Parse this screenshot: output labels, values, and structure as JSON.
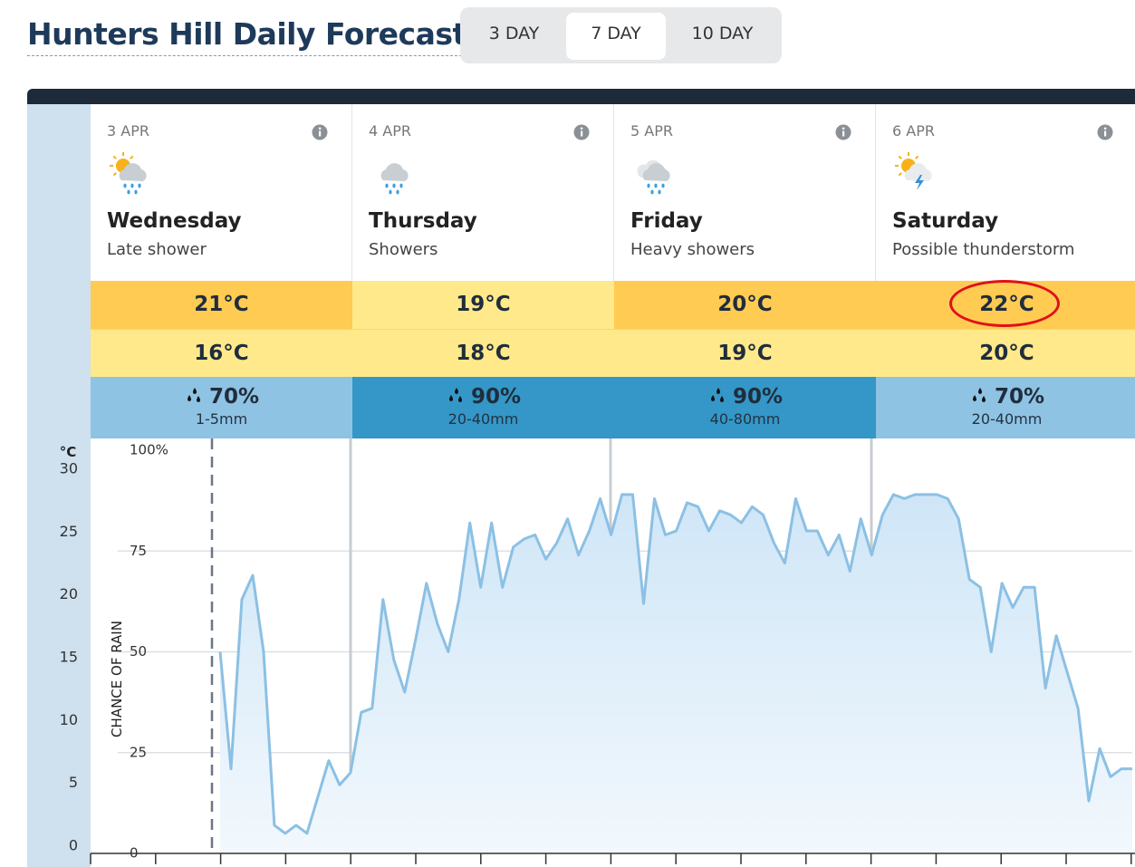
{
  "header": {
    "title": "Hunters Hill Daily Forecast",
    "tabs": [
      "3 DAY",
      "7 DAY",
      "10 DAY"
    ],
    "active_tab": 1
  },
  "days": [
    {
      "date": "3 APR",
      "name": "Wednesday",
      "summary": "Late shower",
      "icon": "sun-rain",
      "max": "21°C",
      "min": "16°C",
      "rain_chance": "70%",
      "rain_amount": "1-5mm",
      "max_color": "#ffcb52",
      "min_color": "#ffe98a",
      "rain_color": "#8fc3e3"
    },
    {
      "date": "4 APR",
      "name": "Thursday",
      "summary": "Showers",
      "icon": "rain",
      "max": "19°C",
      "min": "18°C",
      "rain_chance": "90%",
      "rain_amount": "20-40mm",
      "max_color": "#ffe98a",
      "min_color": "#ffe98a",
      "rain_color": "#3497c7"
    },
    {
      "date": "5 APR",
      "name": "Friday",
      "summary": "Heavy showers",
      "icon": "heavy-rain",
      "max": "20°C",
      "min": "19°C",
      "rain_chance": "90%",
      "rain_amount": "40-80mm",
      "max_color": "#ffcb52",
      "min_color": "#ffe98a",
      "rain_color": "#3497c7"
    },
    {
      "date": "6 APR",
      "name": "Saturday",
      "summary": "Possible thunderstorm",
      "icon": "storm",
      "max": "22°C",
      "min": "20°C",
      "rain_chance": "70%",
      "rain_amount": "20-40mm",
      "max_color": "#ffcb52",
      "min_color": "#ffe98a",
      "rain_color": "#8fc3e3"
    }
  ],
  "chart_data": {
    "type": "line",
    "ylabel": "CHANCE OF RAIN",
    "y2label": "°C",
    "color": "#8cc0e4",
    "ylim": [
      0,
      100
    ],
    "yticks": [
      0,
      25,
      50,
      75,
      {
        "value": 100,
        "label": "100%"
      }
    ],
    "y2lim": [
      0,
      30
    ],
    "y2ticks": [
      0,
      5,
      10,
      15,
      20,
      25,
      30
    ],
    "values": [
      50,
      21,
      63,
      69,
      50,
      7,
      5,
      7,
      5,
      14,
      23,
      17,
      20,
      35,
      36,
      63,
      48,
      40,
      53,
      67,
      57,
      50,
      63,
      82,
      66,
      82,
      66,
      76,
      78,
      79,
      73,
      77,
      83,
      74,
      80,
      88,
      79,
      89,
      89,
      62,
      88,
      79,
      80,
      87,
      86,
      80,
      85,
      84,
      82,
      86,
      84,
      77,
      72,
      88,
      80,
      80,
      74,
      79,
      70,
      83,
      74,
      84,
      89,
      88,
      89,
      89,
      89,
      88,
      83,
      68,
      66,
      50,
      67,
      61,
      66,
      66,
      41,
      54,
      45,
      36,
      13,
      26,
      19,
      21,
      21
    ]
  }
}
